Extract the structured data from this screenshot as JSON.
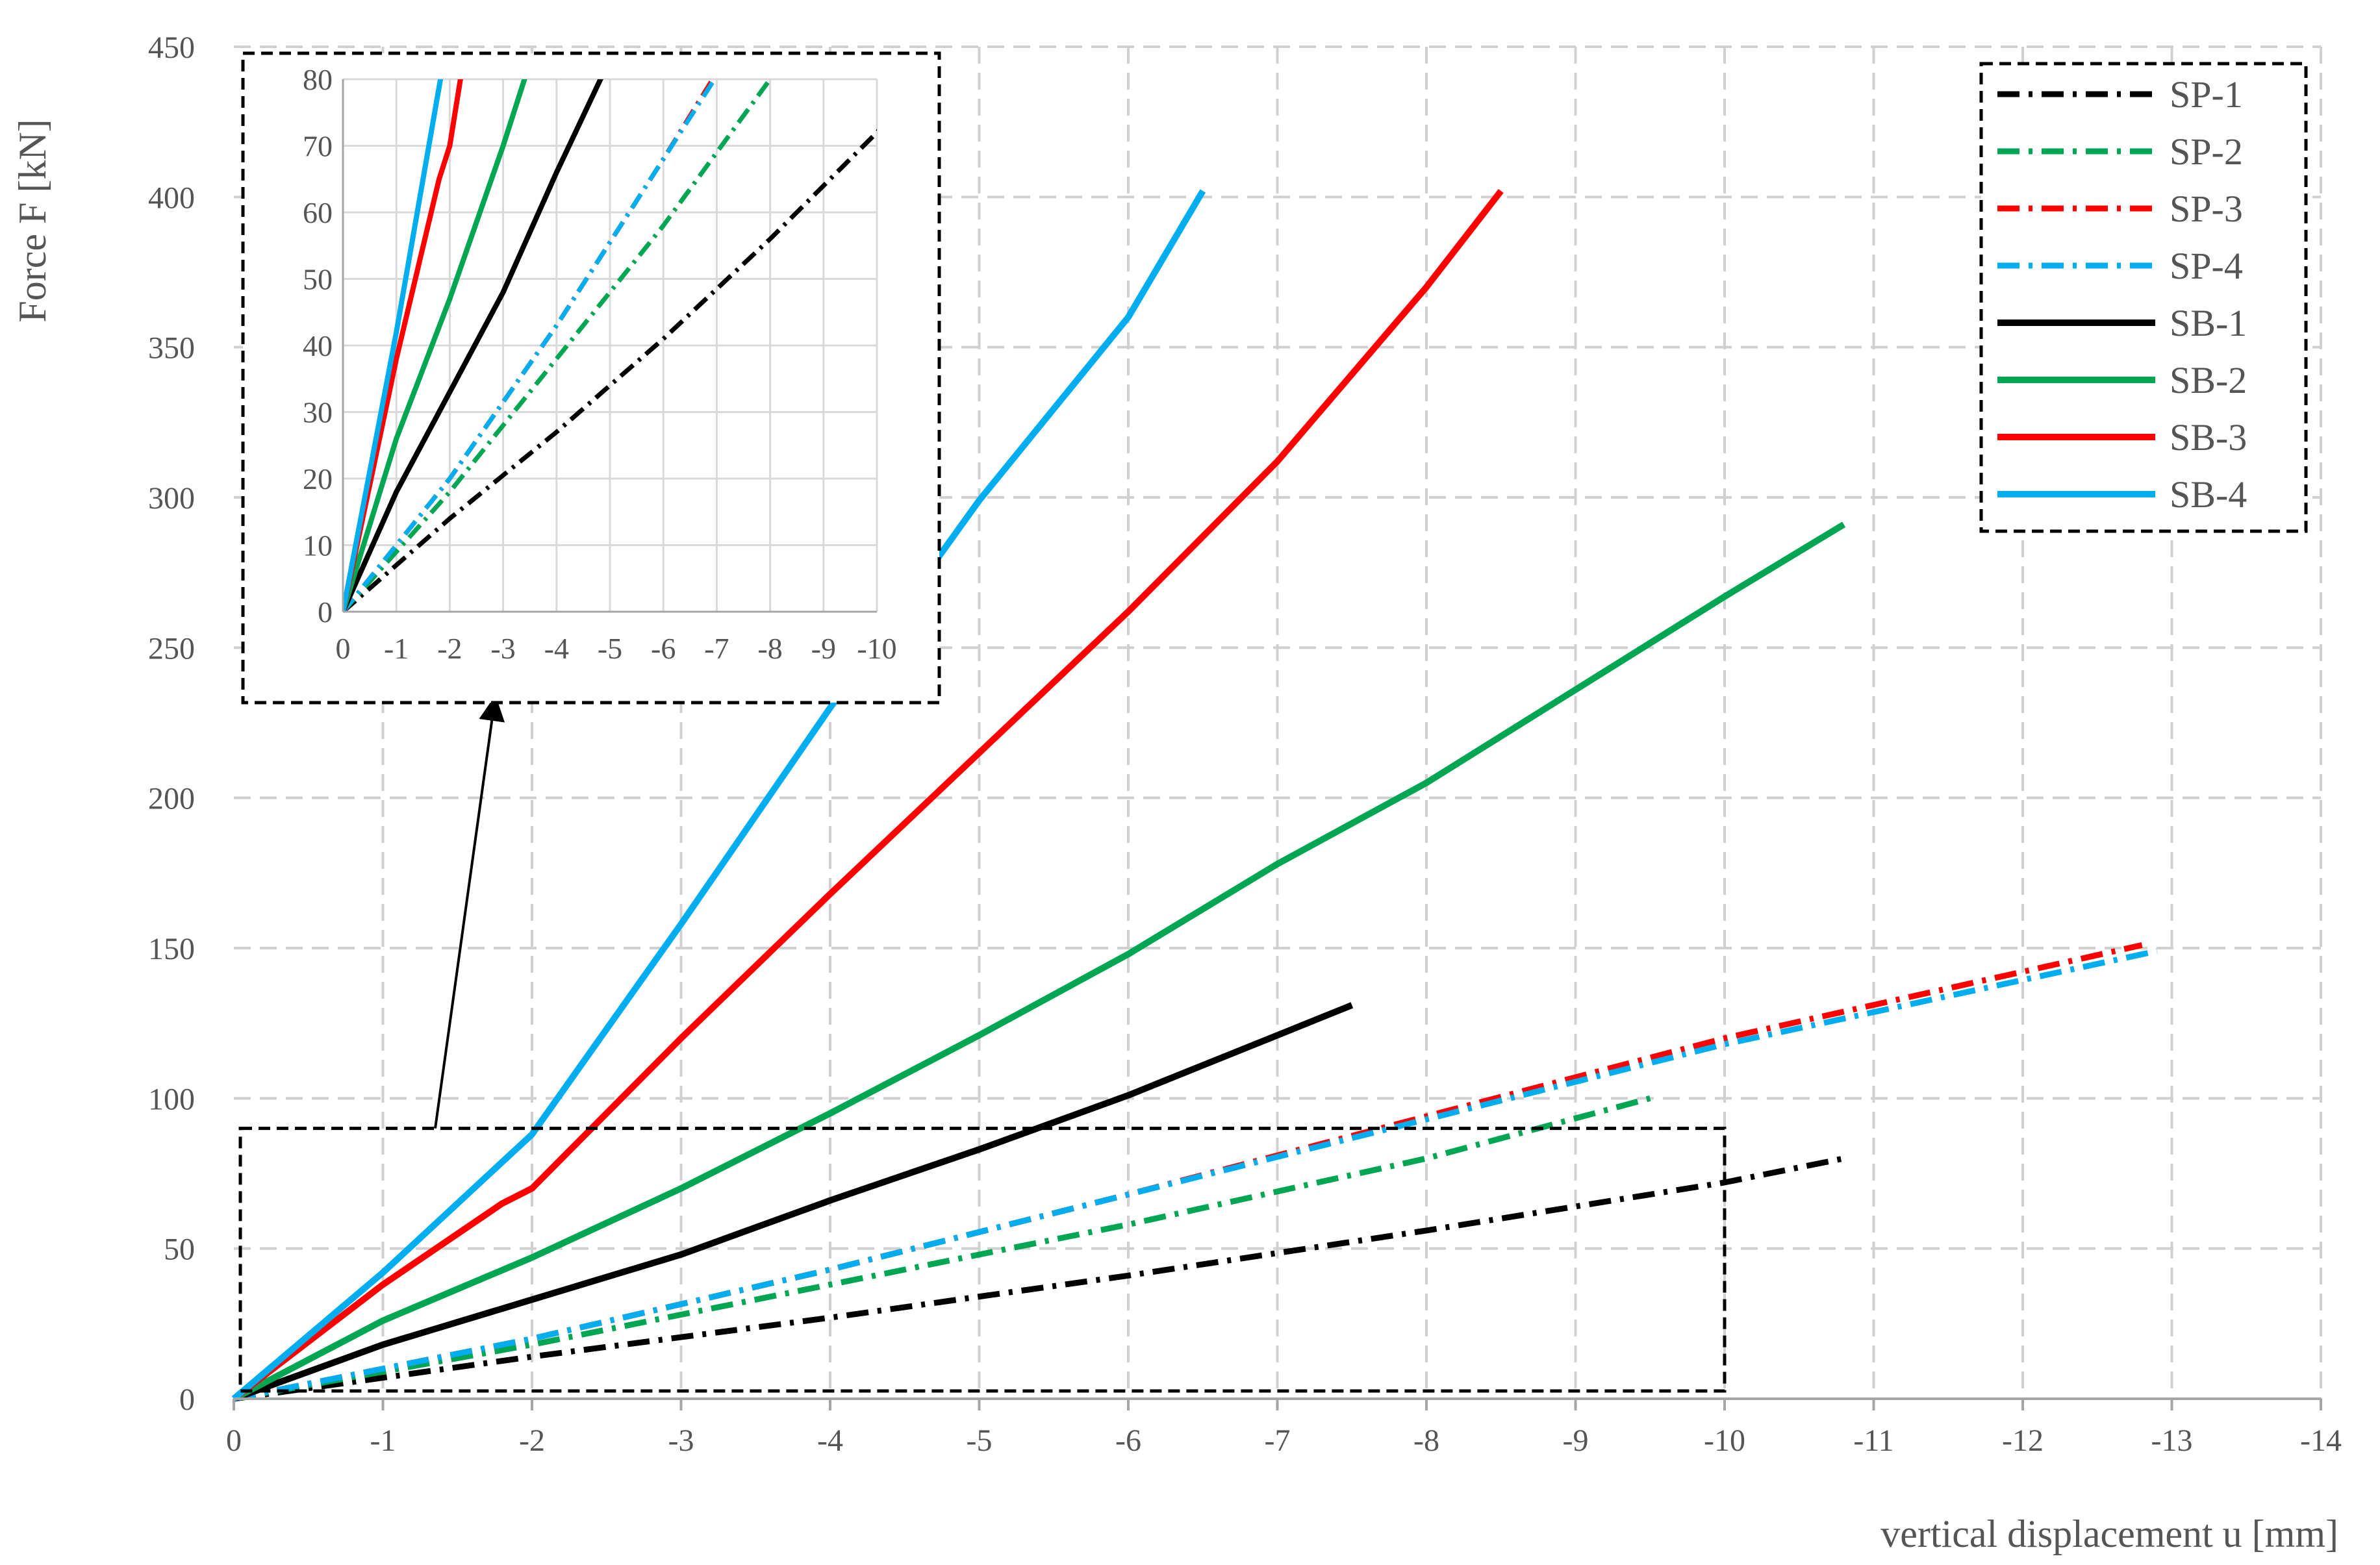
{
  "chart_data": {
    "type": "line",
    "title": "",
    "xlabel": "vertical displacement u [mm]",
    "ylabel": "Force F [kN]",
    "xlim": [
      0,
      -14
    ],
    "ylim": [
      0,
      450
    ],
    "x_ticks": [
      "0",
      "-1",
      "-2",
      "-3",
      "-4",
      "-5",
      "-6",
      "-7",
      "-8",
      "-9",
      "-10",
      "-11",
      "-12",
      "-13",
      "-14"
    ],
    "y_ticks": [
      "0",
      "50",
      "100",
      "150",
      "200",
      "250",
      "300",
      "350",
      "400",
      "450"
    ],
    "grid": true,
    "legend_position": "top-right",
    "series": [
      {
        "name": "SP-1",
        "color": "#000000",
        "style": "dashdot",
        "x": [
          0,
          -2,
          -4,
          -6,
          -8,
          -10,
          -10.8
        ],
        "y": [
          0,
          14,
          27,
          41,
          56,
          72,
          80
        ]
      },
      {
        "name": "SP-2",
        "color": "#00a651",
        "style": "dashdot",
        "x": [
          0,
          -2,
          -4,
          -6,
          -8,
          -9.5
        ],
        "y": [
          0,
          18,
          38,
          58,
          80,
          100
        ]
      },
      {
        "name": "SP-3",
        "color": "#ff0000",
        "style": "dashdot",
        "x": [
          0,
          -2,
          -4,
          -6,
          -8,
          -10,
          -12.8
        ],
        "y": [
          0,
          20,
          43,
          68,
          94,
          120,
          151
        ]
      },
      {
        "name": "SP-4",
        "color": "#00aeef",
        "style": "dashdot",
        "x": [
          0,
          -2,
          -4,
          -6,
          -8,
          -10,
          -12.9
        ],
        "y": [
          0,
          20,
          43,
          68,
          93,
          118,
          149
        ]
      },
      {
        "name": "SB-1",
        "color": "#000000",
        "style": "solid",
        "x": [
          0,
          -1,
          -2,
          -3,
          -4,
          -5,
          -6,
          -7,
          -7.5
        ],
        "y": [
          0,
          18,
          33,
          48,
          66,
          83,
          101,
          121,
          131
        ]
      },
      {
        "name": "SB-2",
        "color": "#00a651",
        "style": "solid",
        "x": [
          0,
          -1,
          -2,
          -3,
          -4,
          -5,
          -6,
          -7,
          -8,
          -9,
          -10,
          -10.8
        ],
        "y": [
          0,
          26,
          47,
          70,
          95,
          121,
          148,
          178,
          205,
          236,
          267,
          291
        ]
      },
      {
        "name": "SB-3",
        "color": "#ff0000",
        "style": "solid",
        "x": [
          0,
          -1,
          -1.8,
          -2,
          -3,
          -4,
          -5,
          -6,
          -7,
          -8,
          -8.5
        ],
        "y": [
          0,
          38,
          65,
          70,
          120,
          168,
          215,
          262,
          312,
          370,
          402
        ]
      },
      {
        "name": "SB-4",
        "color": "#00aeef",
        "style": "solid",
        "x": [
          0,
          -1,
          -2,
          -2.6,
          -3,
          -4,
          -5,
          -6,
          -6.5
        ],
        "y": [
          0,
          42,
          88,
          130,
          158,
          230,
          299,
          360,
          402
        ]
      }
    ],
    "annotations": [
      {
        "type": "zoom-box",
        "xlim": [
          0,
          -10
        ],
        "ylim": [
          0,
          90
        ]
      }
    ],
    "inset": {
      "xlim": [
        0,
        -10
      ],
      "ylim": [
        0,
        80
      ],
      "x_ticks": [
        "0",
        "-1",
        "-2",
        "-3",
        "-4",
        "-5",
        "-6",
        "-7",
        "-8",
        "-9",
        "-10"
      ],
      "y_ticks": [
        "0",
        "10",
        "20",
        "30",
        "40",
        "50",
        "60",
        "70",
        "80"
      ]
    }
  }
}
